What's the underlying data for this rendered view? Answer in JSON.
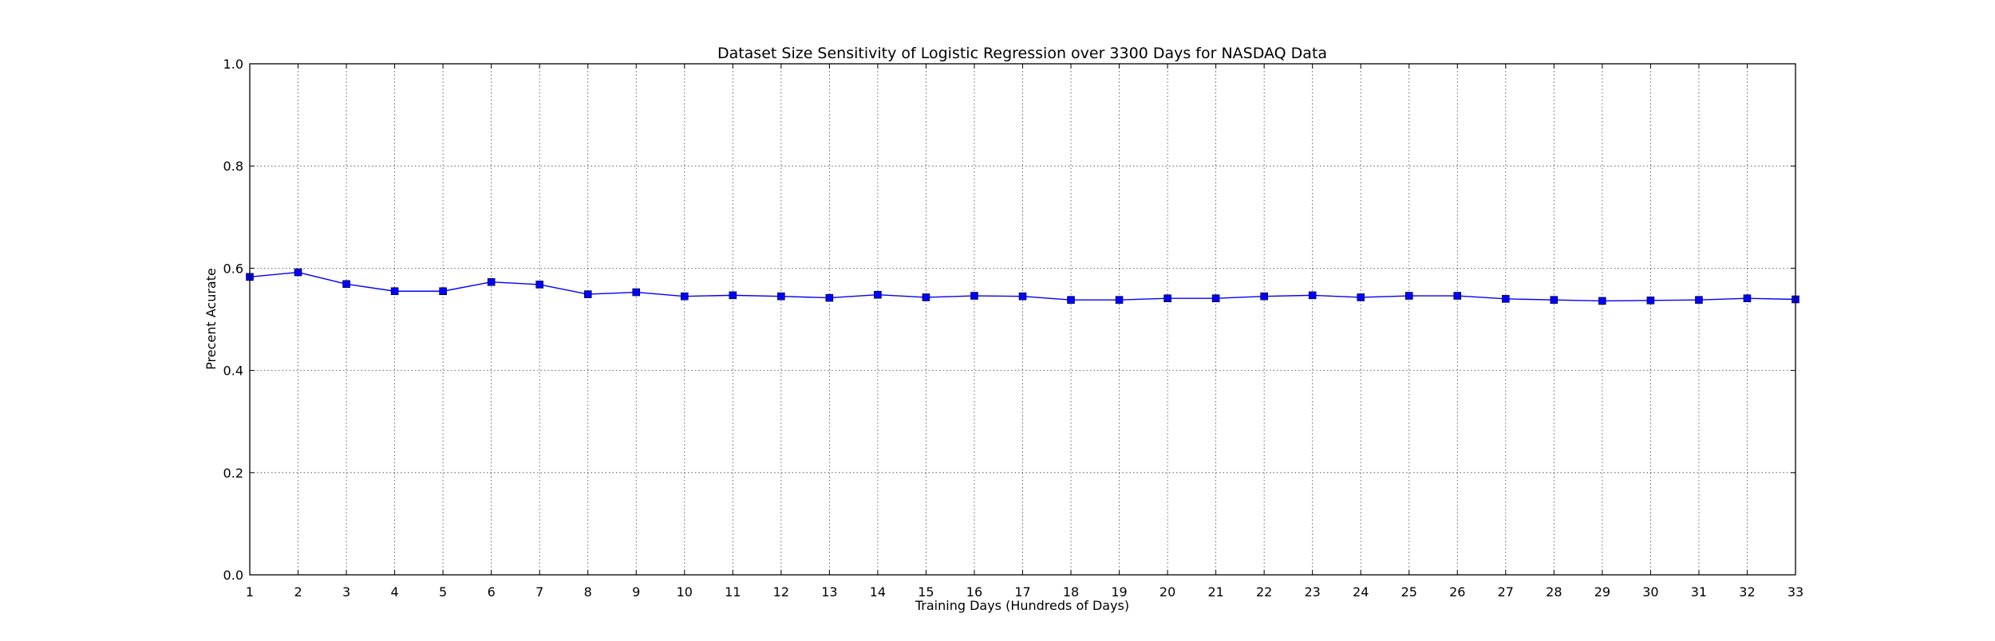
{
  "chart_data": {
    "type": "line",
    "title": "Dataset Size Sensitivity of Logistic Regression over 3300 Days for NASDAQ Data",
    "xlabel": "Training Days (Hundreds of Days)",
    "ylabel": "Precent Acurate",
    "xlim": [
      1,
      33
    ],
    "ylim": [
      0.0,
      1.0
    ],
    "x_ticks": [
      "1",
      "2",
      "3",
      "4",
      "5",
      "6",
      "7",
      "8",
      "9",
      "10",
      "11",
      "12",
      "13",
      "14",
      "15",
      "16",
      "17",
      "18",
      "19",
      "20",
      "21",
      "22",
      "23",
      "24",
      "25",
      "26",
      "27",
      "28",
      "29",
      "30",
      "31",
      "32",
      "33"
    ],
    "y_ticks": [
      "0.0",
      "0.2",
      "0.4",
      "0.6",
      "0.8",
      "1.0"
    ],
    "y_tick_values": [
      0.0,
      0.2,
      0.4,
      0.6,
      0.8,
      1.0
    ],
    "grid": true,
    "grid_style": "dotted",
    "series": [
      {
        "color": "#0000ff",
        "marker": "square",
        "x": [
          1,
          2,
          3,
          4,
          5,
          6,
          7,
          8,
          9,
          10,
          11,
          12,
          13,
          14,
          15,
          16,
          17,
          18,
          19,
          20,
          21,
          22,
          23,
          24,
          25,
          26,
          27,
          28,
          29,
          30,
          31,
          32,
          33
        ],
        "values": [
          0.583,
          0.592,
          0.569,
          0.555,
          0.555,
          0.573,
          0.568,
          0.549,
          0.553,
          0.545,
          0.547,
          0.545,
          0.542,
          0.548,
          0.543,
          0.546,
          0.545,
          0.538,
          0.538,
          0.541,
          0.541,
          0.545,
          0.547,
          0.543,
          0.546,
          0.546,
          0.54,
          0.538,
          0.536,
          0.537,
          0.538,
          0.541,
          0.539
        ]
      }
    ]
  }
}
